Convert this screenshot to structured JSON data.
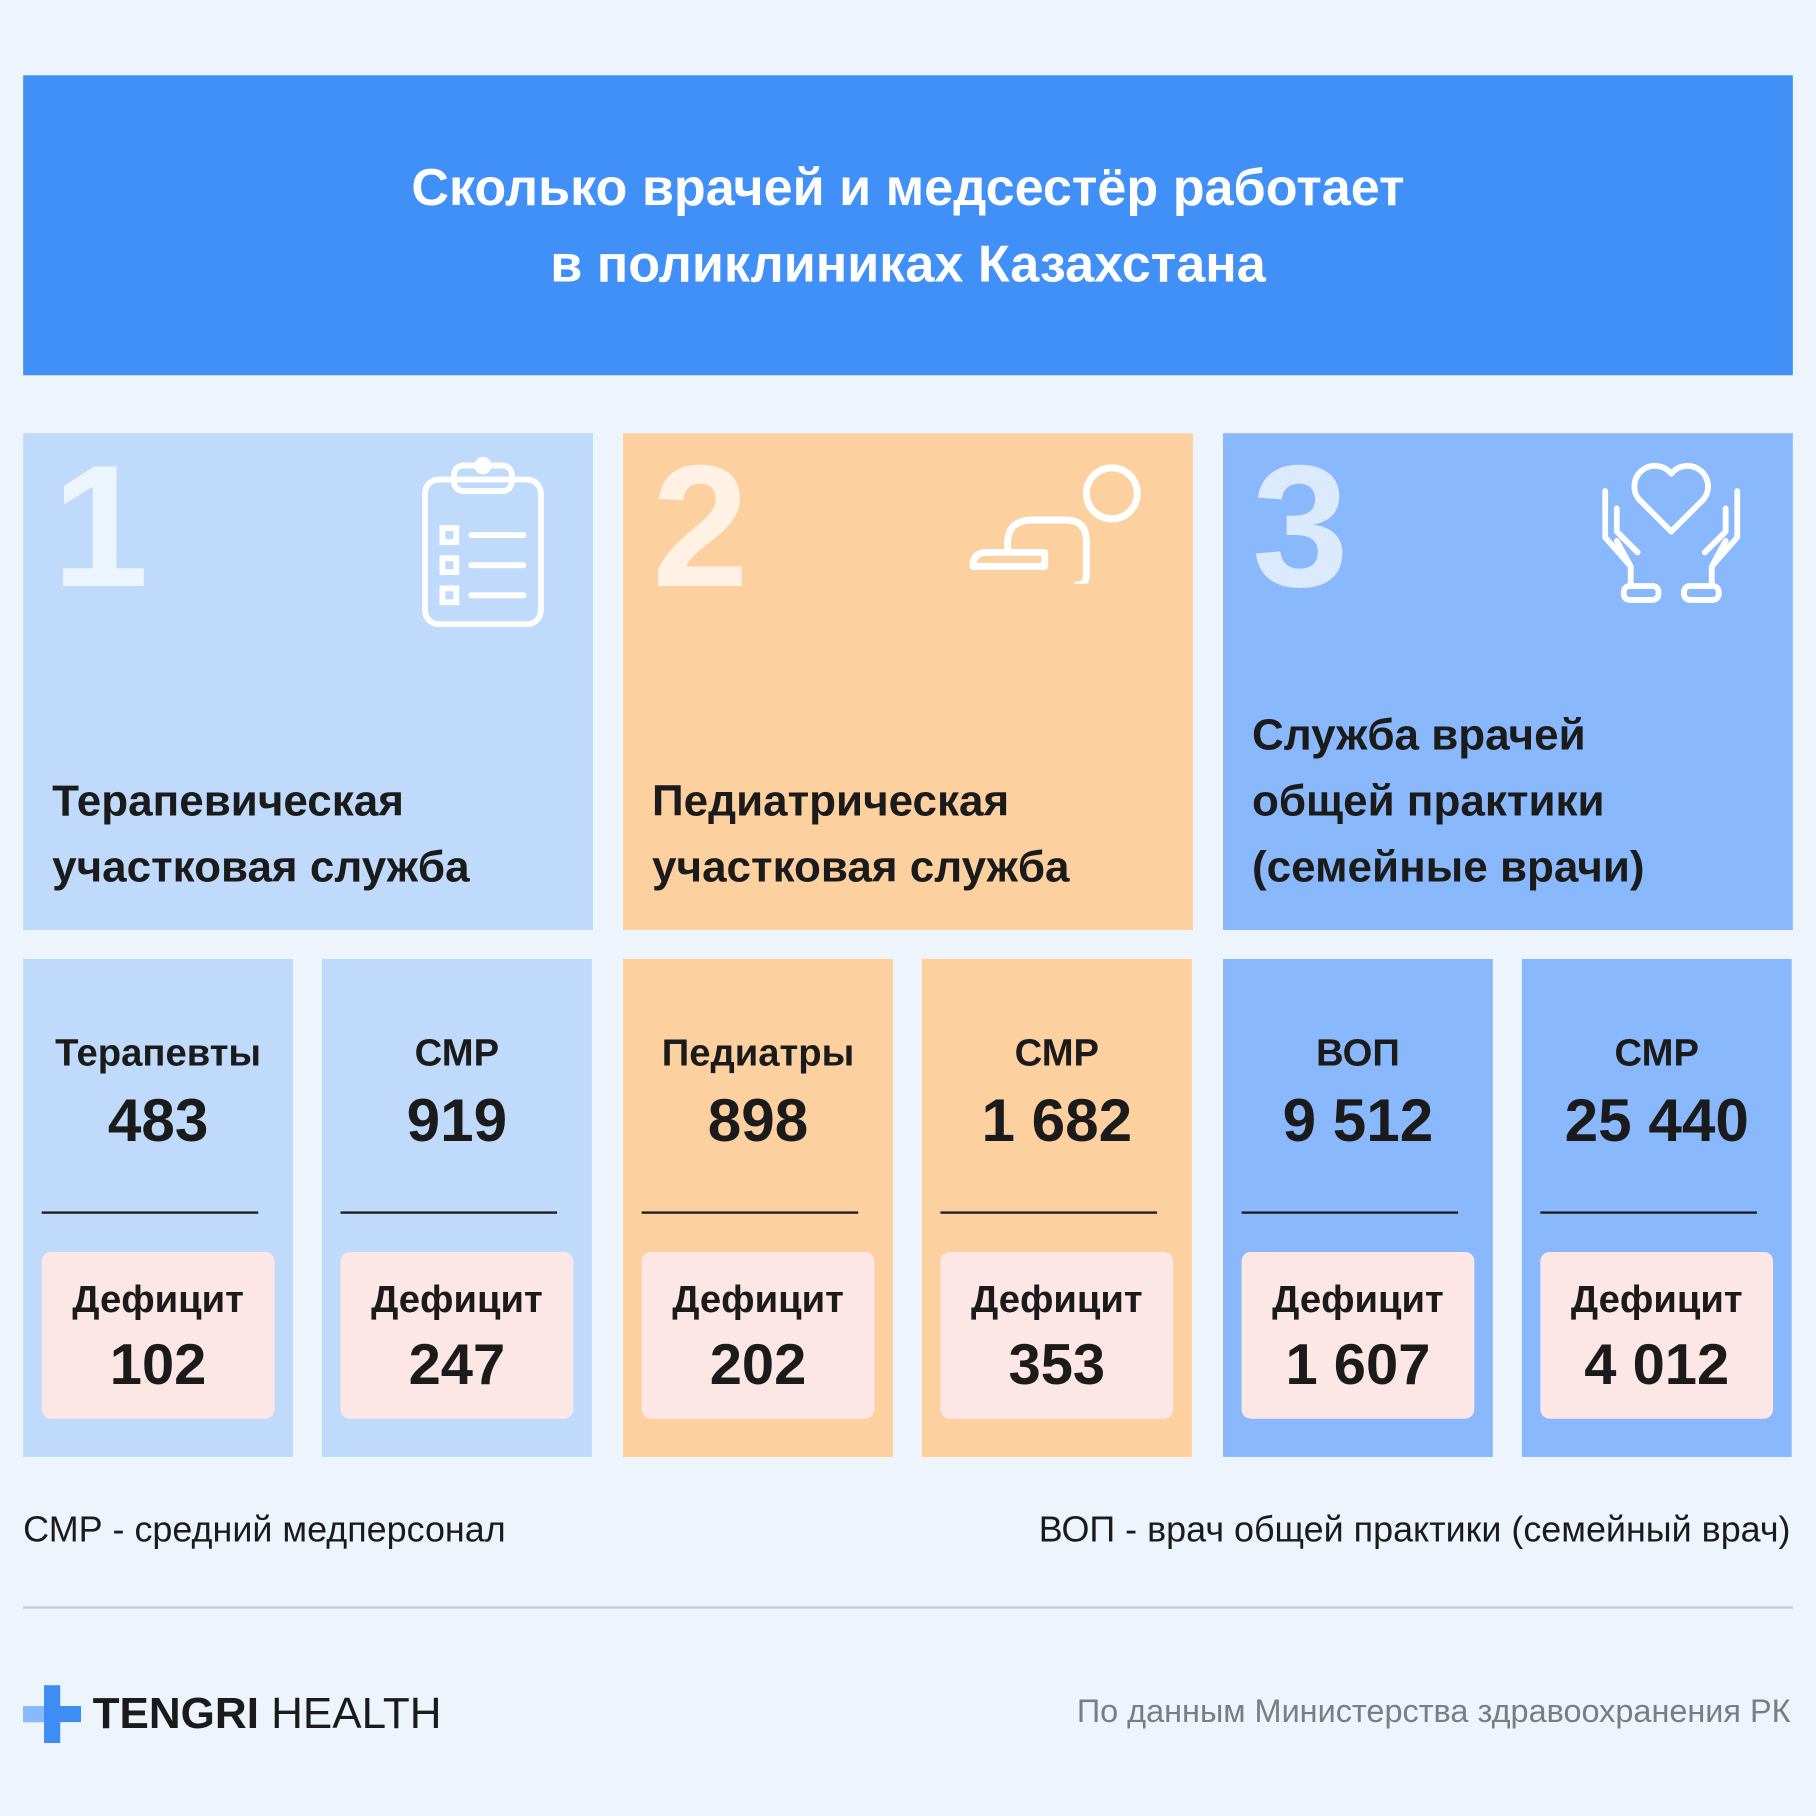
{
  "header": {
    "title_lines": [
      "Сколько врачей и медсестёр работает",
      "в поликлиниках Казахстана"
    ]
  },
  "sections": [
    {
      "number": "1",
      "title_lines": [
        "Терапевическая",
        "участковая служба"
      ],
      "stats": [
        {
          "label": "Терапевты",
          "value": "483",
          "deficit_label": "Дефицит",
          "deficit": "102"
        },
        {
          "label": "СМР",
          "value": "919",
          "deficit_label": "Дефицит",
          "deficit": "247"
        }
      ]
    },
    {
      "number": "2",
      "title_lines": [
        "Педиатрическая",
        "участковая служба"
      ],
      "stats": [
        {
          "label": "Педиатры",
          "value": "898",
          "deficit_label": "Дефицит",
          "deficit": "202"
        },
        {
          "label": "СМР",
          "value": "1 682",
          "deficit_label": "Дефицит",
          "deficit": "353"
        }
      ]
    },
    {
      "number": "3",
      "title_lines": [
        "Служба врачей",
        "общей практики",
        "(семейные врачи)"
      ],
      "stats": [
        {
          "label": "ВОП",
          "value": "9 512",
          "deficit_label": "Дефицит",
          "deficit": "1 607"
        },
        {
          "label": "СМР",
          "value": "25 440",
          "deficit_label": "Дефицит",
          "deficit": "4 012"
        }
      ]
    }
  ],
  "footnotes": [
    "СМР - средний медперсонал",
    "ВОП - врач общей практики (семейный врач)"
  ],
  "footer": {
    "logo_bold": "TENGRI",
    "logo_light": "HEALTH",
    "source": "По данным Министерства здравоохранения РК"
  }
}
